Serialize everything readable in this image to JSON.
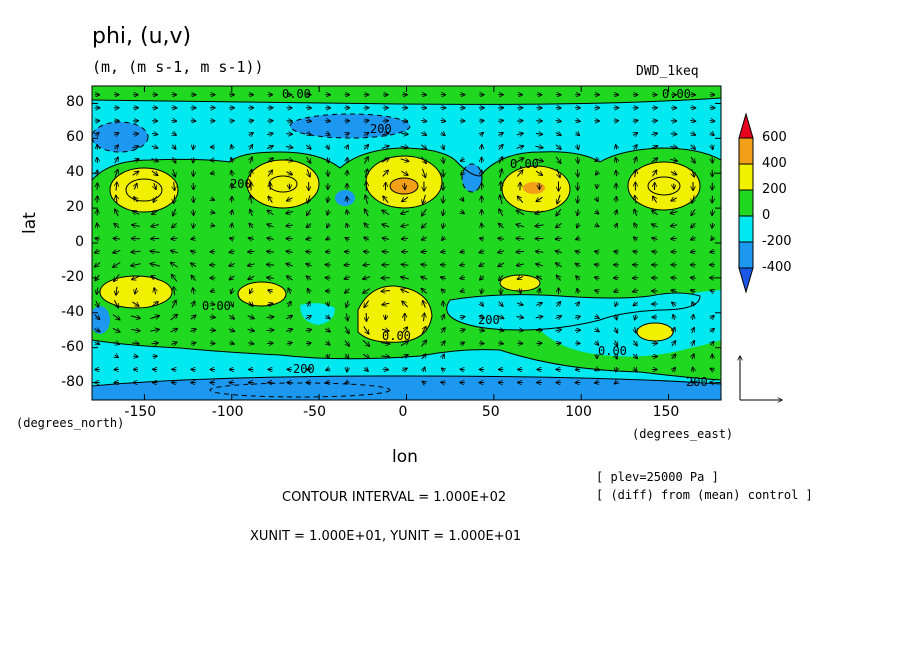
{
  "header": {
    "title": "phi, (u,v)",
    "units": "(m, (m s-1, m s-1))",
    "dataset": "DWD_1keq"
  },
  "axes": {
    "ylabel": "lat",
    "xlabel": "lon",
    "y_units": "(degrees_north)",
    "x_units": "(degrees_east)",
    "y_ticks": [
      "80",
      "60",
      "40",
      "20",
      "0",
      "-20",
      "-40",
      "-60",
      "-80"
    ],
    "x_ticks": [
      "-150",
      "-100",
      "-50",
      "0",
      "50",
      "100",
      "150"
    ]
  },
  "legend": {
    "levels": [
      "600",
      "400",
      "200",
      "0",
      "-200",
      "-400"
    ],
    "colors": [
      "#e8001e",
      "#f2a018",
      "#f0f000",
      "#20d820",
      "#00e8f0",
      "#1c98f0",
      "#1c58e8"
    ]
  },
  "footer": {
    "plev": "[ plev=25000 Pa ]",
    "diff": "[ (diff) from (mean) control ]",
    "contour_interval": "CONTOUR INTERVAL = 1.000E+02",
    "unit_vector": "XUNIT = 1.000E+01, YUNIT = 1.000E+01"
  },
  "contour_labels": [
    "0.00",
    "0.00",
    "200",
    "200",
    "0.00",
    "0.00",
    "200",
    "0.00",
    "0.00",
    "200",
    "200"
  ],
  "chart_data": {
    "type": "heatmap",
    "title": "phi, (u,v)",
    "xlabel": "lon",
    "ylabel": "lat",
    "xlim": [
      -180,
      180
    ],
    "ylim": [
      -90,
      90
    ],
    "color_levels": [
      -400,
      -200,
      0,
      200,
      400,
      600
    ],
    "highs": [
      {
        "lon": -150,
        "lat": 30,
        "max": 400
      },
      {
        "lon": -70,
        "lat": 32,
        "max": 400
      },
      {
        "lon": -5,
        "lat": 32,
        "max": 500
      },
      {
        "lon": 72,
        "lat": 32,
        "max": 500
      },
      {
        "lon": 150,
        "lat": 32,
        "max": 400
      },
      {
        "lon": -150,
        "lat": -28,
        "max": 400
      },
      {
        "lon": -80,
        "lat": -30,
        "max": 200
      },
      {
        "lon": -10,
        "lat": -45,
        "max": 400
      },
      {
        "lon": 70,
        "lat": -24,
        "max": 200
      },
      {
        "lon": 142,
        "lat": -53,
        "max": 200
      }
    ],
    "lows": [
      {
        "lon": -160,
        "lat": 60,
        "min": -200
      },
      {
        "lon": -30,
        "lat": 68,
        "min": -200
      },
      {
        "lon": 0,
        "lat": -80,
        "min": -400
      }
    ]
  }
}
